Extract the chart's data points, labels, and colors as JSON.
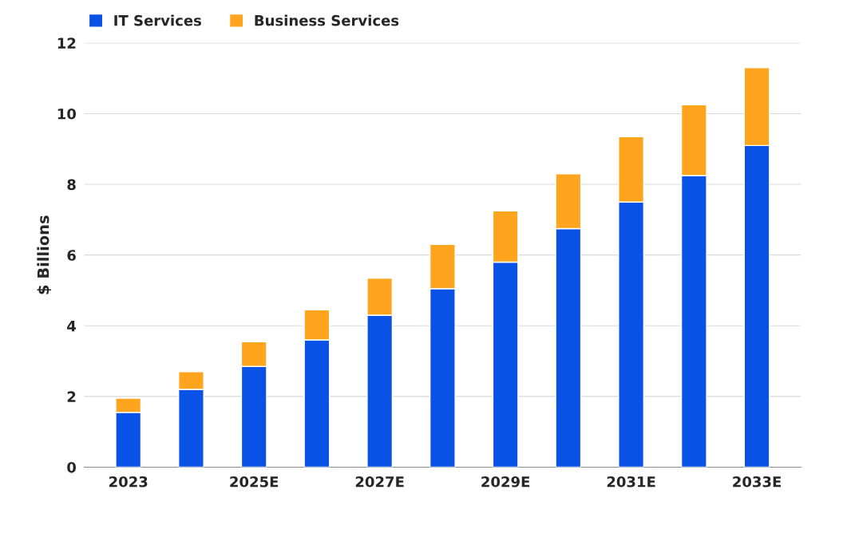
{
  "chart_data": {
    "type": "bar",
    "stacked": true,
    "ylabel": "$ Billions",
    "categories": [
      "2023",
      null,
      "2025E",
      null,
      "2027E",
      null,
      "2029E",
      null,
      "2031E",
      null,
      "2033E"
    ],
    "series": [
      {
        "name": "IT Services",
        "color": "#0a52e6",
        "values": [
          1.55,
          2.2,
          2.85,
          3.6,
          4.3,
          5.05,
          5.8,
          6.75,
          7.5,
          8.25,
          9.1
        ]
      },
      {
        "name": "Business Services",
        "color": "#ffa41d",
        "values": [
          0.4,
          0.5,
          0.7,
          0.85,
          1.05,
          1.25,
          1.45,
          1.55,
          1.85,
          2.0,
          2.2
        ]
      }
    ],
    "ylim": [
      0,
      12
    ],
    "yticks": [
      0,
      2,
      4,
      6,
      8,
      10,
      12
    ],
    "grid": "y",
    "legend": "top left"
  }
}
